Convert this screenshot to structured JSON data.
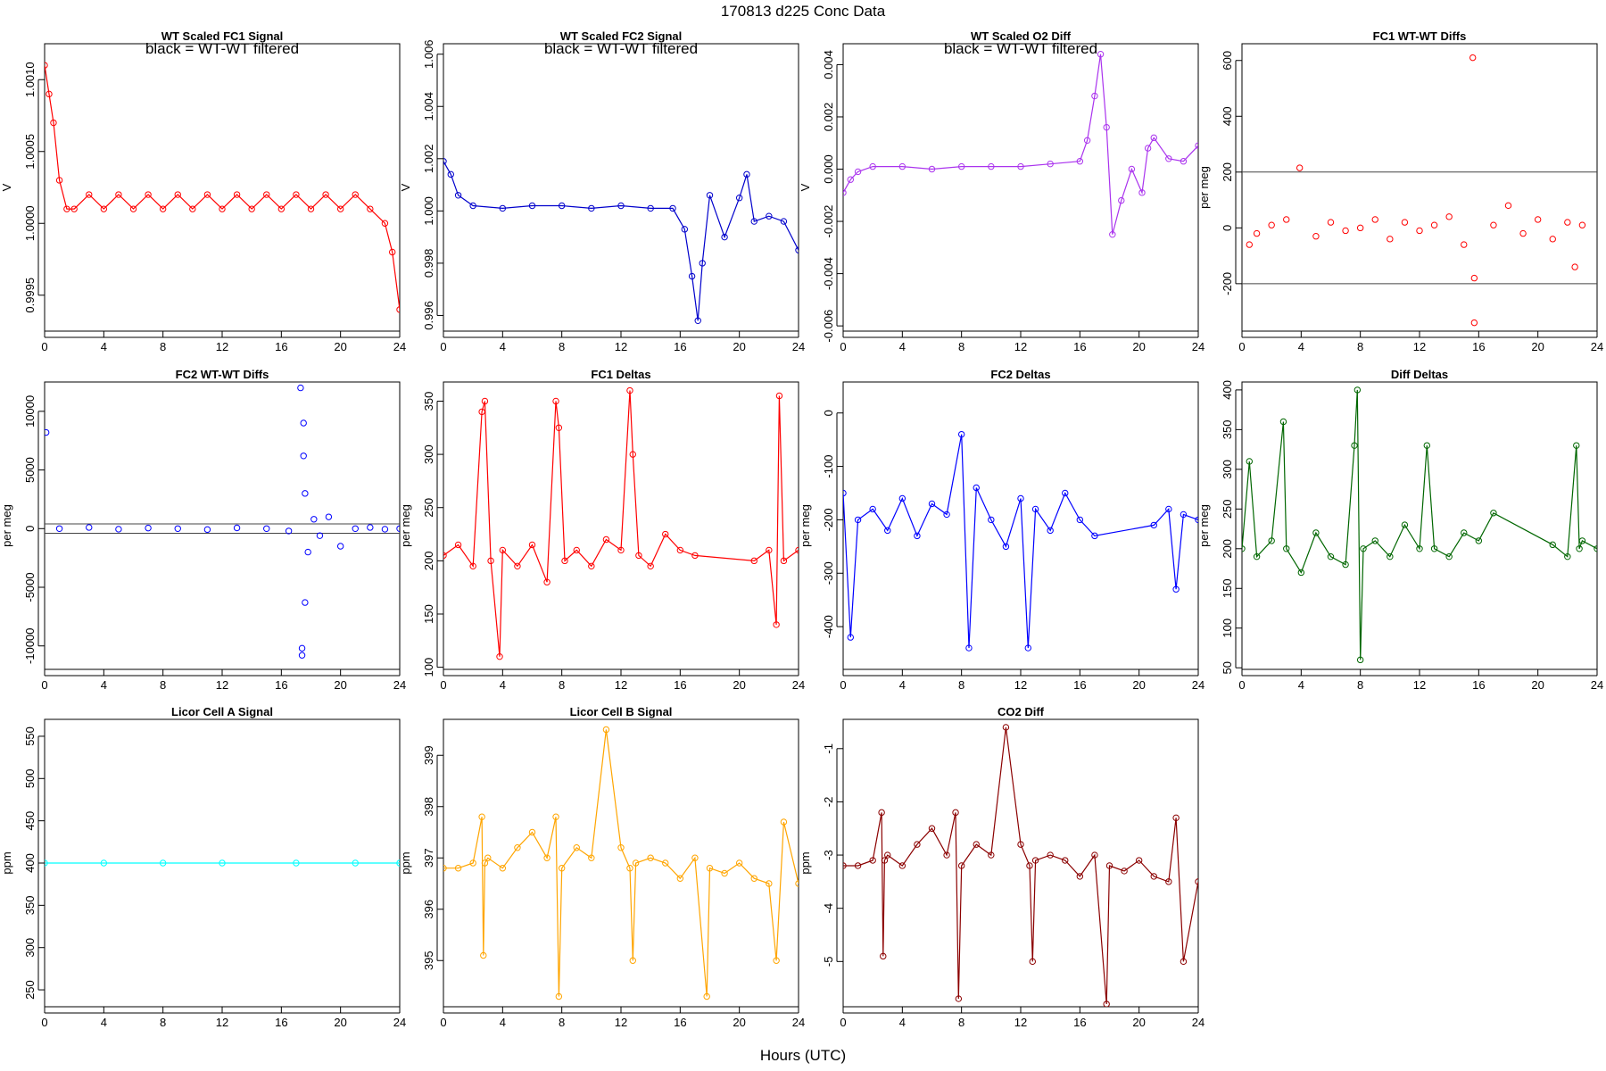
{
  "figure": {
    "suptitle": "170813    d225    Conc Data",
    "xlabel": "Hours (UTC)"
  },
  "chart_data": [
    {
      "type": "line",
      "title": "WT Scaled FC1 Signal",
      "note": "black = WT-WT filtered",
      "ylabel": "V",
      "color": "#ff0000",
      "xlim": [
        0,
        24
      ],
      "ylim": [
        0.99925,
        1.00125
      ],
      "xticks": [
        0,
        4,
        8,
        12,
        16,
        20,
        24
      ],
      "xtick_labels": [
        "0",
        "4",
        "8",
        "12",
        "16",
        "20",
        "24"
      ],
      "yticks": [
        0.9995,
        1.0,
        1.0005,
        1.001
      ],
      "ytick_labels": [
        "0.9995",
        "1.0000",
        "1.0005",
        "1.0010"
      ],
      "series": [
        {
          "name": "FC1 signal",
          "x": [
            0,
            0.3,
            0.6,
            1,
            1.5,
            2,
            3,
            4,
            5,
            6,
            7,
            8,
            9,
            10,
            11,
            12,
            13,
            14,
            15,
            16,
            17,
            18,
            19,
            20,
            21,
            22,
            23,
            23.5,
            24
          ],
          "y": [
            1.0011,
            1.0009,
            1.0007,
            1.0003,
            1.0001,
            1.0001,
            1.0002,
            1.0001,
            1.0002,
            1.0001,
            1.0002,
            1.0001,
            1.0002,
            1.0001,
            1.0002,
            1.0001,
            1.0002,
            1.0001,
            1.0002,
            1.0001,
            1.0002,
            1.0001,
            1.0002,
            1.0001,
            1.0002,
            1.0001,
            1.0,
            0.9998,
            0.9994
          ]
        }
      ]
    },
    {
      "type": "line",
      "title": "WT Scaled FC2 Signal",
      "note": "black = WT-WT filtered",
      "ylabel": "V",
      "color": "#0000cc",
      "xlim": [
        0,
        24
      ],
      "ylim": [
        0.9954,
        1.0064
      ],
      "xticks": [
        0,
        4,
        8,
        12,
        16,
        20,
        24
      ],
      "xtick_labels": [
        "0",
        "4",
        "8",
        "12",
        "16",
        "20",
        "24"
      ],
      "yticks": [
        0.996,
        0.998,
        1.0,
        1.002,
        1.004,
        1.006
      ],
      "ytick_labels": [
        "0.996",
        "0.998",
        "1.000",
        "1.002",
        "1.004",
        "1.006"
      ],
      "series": [
        {
          "name": "FC2 signal",
          "x": [
            0,
            0.5,
            1,
            2,
            4,
            6,
            8,
            10,
            12,
            14,
            15.5,
            16.3,
            16.8,
            17.2,
            17.5,
            18,
            19,
            20,
            20.5,
            21,
            22,
            23,
            24
          ],
          "y": [
            1.0019,
            1.0014,
            1.0006,
            1.0002,
            1.0001,
            1.0002,
            1.0002,
            1.0001,
            1.0002,
            1.0001,
            1.0001,
            0.9993,
            0.9975,
            0.9958,
            0.998,
            1.0006,
            0.999,
            1.0005,
            1.0014,
            0.9996,
            0.9998,
            0.9996,
            0.9985
          ]
        }
      ]
    },
    {
      "type": "line",
      "title": "WT Scaled O2 Diff",
      "note": "black = WT-WT filtered",
      "ylabel": "V",
      "color": "#aa33ee",
      "xlim": [
        0,
        24
      ],
      "ylim": [
        -0.0062,
        0.0048
      ],
      "xticks": [
        0,
        4,
        8,
        12,
        16,
        20,
        24
      ],
      "xtick_labels": [
        "0",
        "4",
        "8",
        "12",
        "16",
        "20",
        "24"
      ],
      "yticks": [
        -0.006,
        -0.004,
        -0.002,
        0.0,
        0.002,
        0.004
      ],
      "ytick_labels": [
        "-0.006",
        "-0.004",
        "-0.002",
        "0.000",
        "0.002",
        "0.004"
      ],
      "series": [
        {
          "name": "O2 diff",
          "x": [
            0,
            0.5,
            1,
            2,
            4,
            6,
            8,
            10,
            12,
            14,
            16,
            16.5,
            17,
            17.4,
            17.8,
            18.2,
            18.8,
            19.5,
            20.2,
            20.6,
            21,
            22,
            23,
            24
          ],
          "y": [
            -0.0009,
            -0.0004,
            -0.0001,
            0.0001,
            0.0001,
            0.0,
            0.0001,
            0.0001,
            0.0001,
            0.0002,
            0.0003,
            0.0011,
            0.0028,
            0.0044,
            0.0016,
            -0.0025,
            -0.0012,
            0.0,
            -0.0009,
            0.0008,
            0.0012,
            0.0004,
            0.0003,
            0.0009
          ]
        }
      ]
    },
    {
      "type": "scatter",
      "title": "FC1 WT-WT Diffs",
      "ylabel": "per meg",
      "color": "#ff0000",
      "xlim": [
        0,
        24
      ],
      "ylim": [
        -370,
        660
      ],
      "xticks": [
        0,
        4,
        8,
        12,
        16,
        20,
        24
      ],
      "xtick_labels": [
        "0",
        "4",
        "8",
        "12",
        "16",
        "20",
        "24"
      ],
      "yticks": [
        -200,
        0,
        200,
        400,
        600
      ],
      "ytick_labels": [
        "-200",
        "0",
        "200",
        "400",
        "600"
      ],
      "hlines": [
        200,
        -200
      ],
      "series": [
        {
          "name": "FC1 WT-WT",
          "x": [
            0.5,
            1,
            2,
            3,
            3.9,
            5,
            6,
            7,
            8,
            9,
            10,
            11,
            12,
            13,
            14,
            15,
            15.6,
            15.7,
            15.7,
            17,
            18,
            19,
            20,
            21,
            22,
            22.5,
            23
          ],
          "y": [
            -60,
            -20,
            10,
            30,
            215,
            -30,
            20,
            -10,
            0,
            30,
            -40,
            20,
            -10,
            10,
            40,
            -60,
            610,
            -340,
            -180,
            10,
            80,
            -20,
            30,
            -40,
            20,
            -140,
            10
          ]
        }
      ]
    },
    {
      "type": "scatter",
      "title": "FC2 WT-WT Diffs",
      "ylabel": "per meg",
      "color": "#0000ff",
      "xlim": [
        0,
        24
      ],
      "ylim": [
        -12000,
        12500
      ],
      "xticks": [
        0,
        4,
        8,
        12,
        16,
        20,
        24
      ],
      "xtick_labels": [
        "0",
        "4",
        "8",
        "12",
        "16",
        "20",
        "24"
      ],
      "yticks": [
        -10000,
        -5000,
        0,
        5000,
        10000
      ],
      "ytick_labels": [
        "-10000",
        "-5000",
        "0",
        "5000",
        "10000"
      ],
      "hlines": [
        400,
        -400
      ],
      "series": [
        {
          "name": "FC2 WT-WT",
          "x": [
            0.1,
            1,
            3,
            5,
            7,
            9,
            11,
            13,
            15,
            16.5,
            17.3,
            17.4,
            17.5,
            17.6,
            17.5,
            17.4,
            17.6,
            17.8,
            18.2,
            18.6,
            19.2,
            20,
            21,
            22,
            23,
            24
          ],
          "y": [
            8200,
            0,
            100,
            -50,
            50,
            0,
            -80,
            60,
            0,
            -200,
            12000,
            -10200,
            6200,
            -6300,
            9000,
            -10800,
            3000,
            -2000,
            800,
            -600,
            1000,
            -1500,
            0,
            100,
            -50,
            0
          ]
        }
      ]
    },
    {
      "type": "line",
      "title": "FC1 Deltas",
      "ylabel": "per meg",
      "color": "#ff0000",
      "xlim": [
        0,
        24
      ],
      "ylim": [
        98,
        368
      ],
      "xticks": [
        0,
        4,
        8,
        12,
        16,
        20,
        24
      ],
      "xtick_labels": [
        "0",
        "4",
        "8",
        "12",
        "16",
        "20",
        "24"
      ],
      "yticks": [
        100,
        150,
        200,
        250,
        300,
        350
      ],
      "ytick_labels": [
        "100",
        "150",
        "200",
        "250",
        "300",
        "350"
      ],
      "series": [
        {
          "name": "FC1 delta",
          "x": [
            0,
            1,
            2,
            2.6,
            2.8,
            3.2,
            3.8,
            4,
            5,
            6,
            7,
            7.6,
            7.8,
            8.2,
            9,
            10,
            11,
            12,
            12.6,
            12.8,
            13.2,
            14,
            15,
            16,
            17,
            21,
            22,
            22.5,
            22.7,
            23,
            24
          ],
          "y": [
            205,
            215,
            195,
            340,
            350,
            200,
            110,
            210,
            195,
            215,
            180,
            350,
            325,
            200,
            210,
            195,
            220,
            210,
            360,
            300,
            205,
            195,
            225,
            210,
            205,
            200,
            210,
            140,
            355,
            200,
            210
          ]
        }
      ]
    },
    {
      "type": "line",
      "title": "FC2 Deltas",
      "ylabel": "per meg",
      "color": "#0000ff",
      "xlim": [
        0,
        24
      ],
      "ylim": [
        -480,
        58
      ],
      "xticks": [
        0,
        4,
        8,
        12,
        16,
        20,
        24
      ],
      "xtick_labels": [
        "0",
        "4",
        "8",
        "12",
        "16",
        "20",
        "24"
      ],
      "yticks": [
        -400,
        -300,
        -200,
        -100,
        0
      ],
      "ytick_labels": [
        "-400",
        "-300",
        "-200",
        "-100",
        "0"
      ],
      "series": [
        {
          "name": "FC2 delta",
          "x": [
            0,
            0.5,
            1,
            2,
            3,
            4,
            5,
            6,
            7,
            8,
            8.5,
            9,
            10,
            11,
            12,
            12.5,
            13,
            14,
            15,
            16,
            17,
            21,
            22,
            22.5,
            23,
            24
          ],
          "y": [
            -150,
            -420,
            -200,
            -180,
            -220,
            -160,
            -230,
            -170,
            -190,
            -40,
            -440,
            -140,
            -200,
            -250,
            -160,
            -440,
            -180,
            -220,
            -150,
            -200,
            -230,
            -210,
            -180,
            -330,
            -190,
            -200
          ]
        }
      ]
    },
    {
      "type": "line",
      "title": "Diff Deltas",
      "ylabel": "per meg",
      "color": "#006600",
      "xlim": [
        0,
        24
      ],
      "ylim": [
        48,
        410
      ],
      "xticks": [
        0,
        4,
        8,
        12,
        16,
        20,
        24
      ],
      "xtick_labels": [
        "0",
        "4",
        "8",
        "12",
        "16",
        "20",
        "24"
      ],
      "yticks": [
        50,
        100,
        150,
        200,
        250,
        300,
        350,
        400
      ],
      "ytick_labels": [
        "50",
        "100",
        "150",
        "200",
        "250",
        "300",
        "350",
        "400"
      ],
      "series": [
        {
          "name": "Diff delta",
          "x": [
            0,
            0.5,
            1,
            2,
            2.8,
            3,
            4,
            5,
            6,
            7,
            7.6,
            7.8,
            8,
            8.2,
            9,
            10,
            11,
            12,
            12.5,
            13,
            14,
            15,
            16,
            17,
            21,
            22,
            22.6,
            22.8,
            23,
            24
          ],
          "y": [
            200,
            310,
            190,
            210,
            360,
            200,
            170,
            220,
            190,
            180,
            330,
            400,
            60,
            200,
            210,
            190,
            230,
            200,
            330,
            200,
            190,
            220,
            210,
            245,
            205,
            190,
            330,
            200,
            210,
            200
          ]
        }
      ]
    },
    {
      "type": "line",
      "title": "Licor Cell A Signal",
      "ylabel": "ppm",
      "color": "#00ffff",
      "xlim": [
        0,
        24
      ],
      "ylim": [
        230,
        570
      ],
      "xticks": [
        0,
        4,
        8,
        12,
        16,
        20,
        24
      ],
      "xtick_labels": [
        "0",
        "4",
        "8",
        "12",
        "16",
        "20",
        "24"
      ],
      "yticks": [
        250,
        300,
        350,
        400,
        450,
        500,
        550
      ],
      "ytick_labels": [
        "250",
        "300",
        "350",
        "400",
        "450",
        "500",
        "550"
      ],
      "series": [
        {
          "name": "Cell A",
          "x": [
            0,
            4,
            8,
            12,
            17,
            21,
            24
          ],
          "y": [
            400,
            400,
            400,
            400,
            400,
            400,
            400
          ]
        }
      ]
    },
    {
      "type": "line",
      "title": "Licor Cell B Signal",
      "ylabel": "ppm",
      "color": "#ffa500",
      "xlim": [
        0,
        24
      ],
      "ylim": [
        394.1,
        399.7
      ],
      "xticks": [
        0,
        4,
        8,
        12,
        16,
        20,
        24
      ],
      "xtick_labels": [
        "0",
        "4",
        "8",
        "12",
        "16",
        "20",
        "24"
      ],
      "yticks": [
        395,
        396,
        397,
        398,
        399
      ],
      "ytick_labels": [
        "395",
        "396",
        "397",
        "398",
        "399"
      ],
      "series": [
        {
          "name": "Cell B",
          "x": [
            0,
            1,
            2,
            2.6,
            2.7,
            2.8,
            3,
            4,
            5,
            6,
            7,
            7.6,
            7.8,
            8,
            9,
            10,
            11,
            12,
            12.6,
            12.8,
            13,
            14,
            15,
            16,
            17,
            17.8,
            18,
            19,
            20,
            21,
            22,
            22.5,
            23,
            24
          ],
          "y": [
            396.8,
            396.8,
            396.9,
            397.8,
            395.1,
            396.9,
            397.0,
            396.8,
            397.2,
            397.5,
            397.0,
            397.8,
            394.3,
            396.8,
            397.2,
            397.0,
            399.5,
            397.2,
            396.8,
            395.0,
            396.9,
            397.0,
            396.9,
            396.6,
            397.0,
            394.3,
            396.8,
            396.7,
            396.9,
            396.6,
            396.5,
            395.0,
            397.7,
            396.5
          ]
        }
      ]
    },
    {
      "type": "line",
      "title": "CO2 Diff",
      "ylabel": "ppm",
      "color": "#8b0000",
      "xlim": [
        0,
        24
      ],
      "ylim": [
        -5.85,
        -0.45
      ],
      "xticks": [
        0,
        4,
        8,
        12,
        16,
        20,
        24
      ],
      "xtick_labels": [
        "0",
        "4",
        "8",
        "12",
        "16",
        "20",
        "24"
      ],
      "yticks": [
        -5,
        -4,
        -3,
        -2,
        -1
      ],
      "ytick_labels": [
        "-5",
        "-4",
        "-3",
        "-2",
        "-1"
      ],
      "series": [
        {
          "name": "CO2 diff",
          "x": [
            0,
            1,
            2,
            2.6,
            2.7,
            2.8,
            3,
            4,
            5,
            6,
            7,
            7.6,
            7.8,
            8,
            9,
            10,
            11,
            12,
            12.6,
            12.8,
            13,
            14,
            15,
            16,
            17,
            17.8,
            18,
            19,
            20,
            21,
            22,
            22.5,
            23,
            24
          ],
          "y": [
            -3.2,
            -3.2,
            -3.1,
            -2.2,
            -4.9,
            -3.1,
            -3.0,
            -3.2,
            -2.8,
            -2.5,
            -3.0,
            -2.2,
            -5.7,
            -3.2,
            -2.8,
            -3.0,
            -0.6,
            -2.8,
            -3.2,
            -5.0,
            -3.1,
            -3.0,
            -3.1,
            -3.4,
            -3.0,
            -5.8,
            -3.2,
            -3.3,
            -3.1,
            -3.4,
            -3.5,
            -2.3,
            -5.0,
            -3.5
          ]
        }
      ]
    }
  ]
}
